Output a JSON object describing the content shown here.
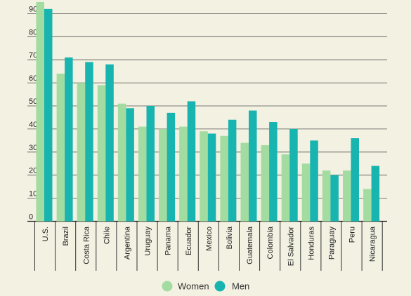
{
  "chart_data": {
    "type": "bar",
    "categories": [
      "U.S.",
      "Brazil",
      "Costa Rica",
      "Chile",
      "Argentina",
      "Uruguay",
      "Panama",
      "Ecuador",
      "Mexico",
      "Bolivia",
      "Guatemala",
      "Colombia",
      "El Salvador",
      "Honduras",
      "Paraguay",
      "Peru",
      "Nicaragua"
    ],
    "series": [
      {
        "name": "Women",
        "color": "#a3dca0",
        "values": [
          95,
          64,
          60,
          59,
          51,
          41,
          40,
          41,
          39,
          37,
          34,
          33,
          29,
          25,
          22,
          22,
          14
        ]
      },
      {
        "name": "Men",
        "color": "#17b4b0",
        "values": [
          92,
          71,
          69,
          68,
          49,
          50,
          47,
          52,
          38,
          44,
          48,
          43,
          40,
          35,
          20,
          36,
          24
        ]
      }
    ],
    "y_ticks": [
      "0",
      "10",
      "20",
      "30",
      "40",
      "50",
      "60",
      "70",
      "80",
      "90"
    ],
    "ylim": [
      0,
      95
    ],
    "grid": true,
    "legend": "bottom-center"
  }
}
